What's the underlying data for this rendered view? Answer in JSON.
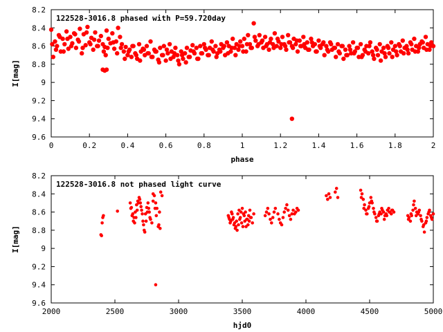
{
  "chart_data": [
    {
      "type": "scatter",
      "title": "122528-3016.8 phased with P=59.720day",
      "xlabel": "phase",
      "ylabel": "I[mag]",
      "xlim": [
        0,
        2
      ],
      "ylim": [
        8.2,
        9.6
      ],
      "y_inverted": true,
      "xticks": [
        "0",
        "0.2",
        "0.4",
        "0.6",
        "0.8",
        "1",
        "1.2",
        "1.4",
        "1.6",
        "1.8",
        "2"
      ],
      "yticks": [
        "8.2",
        "8.4",
        "8.6",
        "8.8",
        "9",
        "9.2",
        "9.4",
        "9.6"
      ],
      "grid": false,
      "marker_color": "#ff0000",
      "marker": "filled-circle",
      "series": [
        {
          "x": [
            0.0,
            0.01,
            0.02,
            0.03,
            0.04,
            0.05,
            0.06,
            0.07,
            0.08,
            0.09,
            0.1,
            0.11,
            0.12,
            0.13,
            0.14,
            0.15,
            0.16,
            0.17,
            0.18,
            0.19,
            0.2,
            0.21,
            0.22,
            0.23,
            0.24,
            0.25,
            0.26,
            0.27,
            0.28,
            0.29,
            0.3,
            0.31,
            0.32,
            0.33,
            0.34,
            0.35,
            0.36,
            0.37,
            0.38,
            0.39,
            0.4,
            0.41,
            0.42,
            0.43,
            0.44,
            0.45,
            0.46,
            0.47,
            0.48,
            0.49,
            0.5,
            0.51,
            0.52,
            0.53,
            0.54,
            0.55,
            0.56,
            0.57,
            0.58,
            0.59,
            0.6,
            0.61,
            0.62,
            0.63,
            0.64,
            0.65,
            0.66,
            0.67,
            0.68,
            0.69,
            0.7,
            0.71,
            0.72,
            0.73,
            0.74,
            0.75,
            0.76,
            0.77,
            0.78,
            0.79,
            0.8,
            0.81,
            0.82,
            0.83,
            0.84,
            0.85,
            0.86,
            0.87,
            0.88,
            0.89,
            0.9,
            0.91,
            0.92,
            0.93,
            0.94,
            0.95,
            0.96,
            0.97,
            0.98,
            0.99,
            1.0,
            1.01,
            1.02,
            1.03,
            1.04,
            1.05,
            1.06,
            1.07,
            1.08,
            1.09,
            1.1,
            1.11,
            1.12,
            1.13,
            1.14,
            1.15,
            1.16,
            1.17,
            1.18,
            1.19,
            1.2,
            1.21,
            1.22,
            1.23,
            1.24,
            1.25,
            1.26,
            1.27,
            1.28,
            1.29,
            1.3,
            1.31,
            1.32,
            1.33,
            1.34,
            1.35,
            1.36,
            1.37,
            1.38,
            1.39,
            1.4,
            1.41,
            1.42,
            1.43,
            1.44,
            1.45,
            1.46,
            1.47,
            1.48,
            1.49,
            1.5,
            1.51,
            1.52,
            1.53,
            1.54,
            1.55,
            1.56,
            1.57,
            1.58,
            1.59,
            1.6,
            1.61,
            1.62,
            1.63,
            1.64,
            1.65,
            1.66,
            1.67,
            1.68,
            1.69,
            1.7,
            1.71,
            1.72,
            1.73,
            1.74,
            1.75,
            1.76,
            1.77,
            1.78,
            1.79,
            1.8,
            1.81,
            1.82,
            1.83,
            1.84,
            1.85,
            1.86,
            1.87,
            1.88,
            1.89,
            1.9,
            1.91,
            1.92,
            1.93,
            1.94,
            1.95,
            1.96,
            1.97,
            1.98,
            1.99,
            2.0,
            0.005,
            0.025,
            0.045,
            0.065,
            0.085,
            0.105,
            0.125,
            0.145,
            0.165,
            0.185,
            0.205,
            0.225,
            0.245,
            0.275,
            0.285,
            0.295,
            0.325,
            0.345,
            0.365,
            0.385,
            0.405,
            0.425,
            0.445,
            0.465,
            0.485,
            0.505,
            0.525,
            0.545,
            0.565,
            0.585,
            0.605,
            0.625,
            0.645,
            0.665,
            0.685,
            0.705,
            0.725,
            0.745,
            0.765,
            0.785,
            0.805,
            0.825,
            0.845,
            0.865,
            0.885,
            0.905,
            0.925,
            0.945,
            0.965,
            0.985,
            1.005,
            1.025,
            1.045,
            1.065,
            1.085,
            1.105,
            1.125,
            1.145,
            1.165,
            1.185,
            1.205,
            1.225,
            1.245,
            1.265,
            1.285,
            1.305,
            1.325,
            1.345,
            1.365,
            1.385,
            1.405,
            1.425,
            1.445,
            1.465,
            1.485,
            1.505,
            1.525,
            1.545,
            1.565,
            1.585,
            1.605,
            1.625,
            1.645,
            1.665,
            1.685,
            1.705,
            1.725,
            1.745,
            1.765,
            1.785,
            1.805,
            1.825,
            1.845,
            1.865,
            1.885,
            1.905,
            1.925,
            1.945,
            1.965,
            1.985,
            0.27,
            0.28,
            0.29,
            1.26
          ],
          "y": [
            8.42,
            8.72,
            8.55,
            8.6,
            8.48,
            8.66,
            8.52,
            8.58,
            8.44,
            8.63,
            8.5,
            8.57,
            8.46,
            8.62,
            8.53,
            8.41,
            8.68,
            8.47,
            8.59,
            8.39,
            8.56,
            8.51,
            8.64,
            8.45,
            8.6,
            8.54,
            8.49,
            8.58,
            8.61,
            8.43,
            8.52,
            8.57,
            8.46,
            8.63,
            8.55,
            8.4,
            8.5,
            8.58,
            8.66,
            8.61,
            8.7,
            8.64,
            8.72,
            8.6,
            8.68,
            8.74,
            8.58,
            8.66,
            8.63,
            8.7,
            8.6,
            8.68,
            8.55,
            8.72,
            8.64,
            8.66,
            8.75,
            8.62,
            8.7,
            8.6,
            8.76,
            8.68,
            8.58,
            8.66,
            8.72,
            8.62,
            8.7,
            8.8,
            8.66,
            8.74,
            8.68,
            8.62,
            8.72,
            8.65,
            8.59,
            8.68,
            8.62,
            8.74,
            8.6,
            8.68,
            8.58,
            8.64,
            8.7,
            8.62,
            8.55,
            8.66,
            8.6,
            8.68,
            8.64,
            8.58,
            8.62,
            8.7,
            8.56,
            8.6,
            8.66,
            8.52,
            8.62,
            8.58,
            8.64,
            8.55,
            8.6,
            8.52,
            8.66,
            8.48,
            8.58,
            8.62,
            8.35,
            8.54,
            8.6,
            8.48,
            8.56,
            8.62,
            8.5,
            8.58,
            8.64,
            8.52,
            8.58,
            8.46,
            8.6,
            8.55,
            8.62,
            8.5,
            8.58,
            8.64,
            8.48,
            8.56,
            8.6,
            8.52,
            8.58,
            8.66,
            8.54,
            8.6,
            8.5,
            8.62,
            8.56,
            8.64,
            8.52,
            8.6,
            8.58,
            8.66,
            8.54,
            8.62,
            8.58,
            8.7,
            8.6,
            8.66,
            8.56,
            8.64,
            8.62,
            8.72,
            8.58,
            8.68,
            8.6,
            8.74,
            8.64,
            8.7,
            8.6,
            8.68,
            8.56,
            8.66,
            8.62,
            8.72,
            8.58,
            8.7,
            8.64,
            8.6,
            8.68,
            8.56,
            8.66,
            8.74,
            8.62,
            8.7,
            8.58,
            8.66,
            8.62,
            8.72,
            8.6,
            8.68,
            8.56,
            8.64,
            8.6,
            8.7,
            8.58,
            8.66,
            8.54,
            8.62,
            8.6,
            8.68,
            8.56,
            8.64,
            8.52,
            8.6,
            8.66,
            8.58,
            8.55,
            8.62,
            8.5,
            8.58,
            8.64,
            8.56,
            8.6,
            8.58,
            8.64,
            8.5,
            8.66,
            8.52,
            8.6,
            8.47,
            8.55,
            8.62,
            8.45,
            8.58,
            8.53,
            8.6,
            8.66,
            8.7,
            8.62,
            8.56,
            8.68,
            8.62,
            8.74,
            8.66,
            8.6,
            8.7,
            8.76,
            8.64,
            8.68,
            8.72,
            8.66,
            8.78,
            8.7,
            8.64,
            8.74,
            8.68,
            8.76,
            8.7,
            8.78,
            8.72,
            8.66,
            8.74,
            8.68,
            8.62,
            8.7,
            8.64,
            8.72,
            8.66,
            8.6,
            8.68,
            8.62,
            8.7,
            8.6,
            8.66,
            8.58,
            8.62,
            8.5,
            8.58,
            8.54,
            8.6,
            8.56,
            8.62,
            8.52,
            8.58,
            8.6,
            8.56,
            8.62,
            8.54,
            8.6,
            8.58,
            8.64,
            8.56,
            8.66,
            8.6,
            8.56,
            8.64,
            8.58,
            8.62,
            8.66,
            8.6,
            8.7,
            8.64,
            8.68,
            8.62,
            8.72,
            8.66,
            8.6,
            8.7,
            8.64,
            8.76,
            8.68,
            8.62,
            8.72,
            8.66,
            8.6,
            8.68,
            8.64,
            8.58,
            8.66,
            8.62,
            8.56,
            8.64,
            8.6,
            8.86,
            8.87,
            8.86,
            9.4
          ]
        }
      ]
    },
    {
      "type": "scatter",
      "title": "122528-3016.8 not phased light curve",
      "xlabel": "hjd0",
      "ylabel": "I[mag]",
      "xlim": [
        2000,
        5000
      ],
      "ylim": [
        8.2,
        9.6
      ],
      "y_inverted": true,
      "xticks": [
        "2000",
        "2500",
        "3000",
        "3500",
        "4000",
        "4500",
        "5000"
      ],
      "yticks": [
        "8.2",
        "8.4",
        "8.6",
        "8.8",
        "9",
        "9.2",
        "9.4",
        "9.6"
      ],
      "grid": false,
      "marker_color": "#ff0000",
      "marker": "filled-circle",
      "series": [
        {
          "x": [
            2390,
            2395,
            2400,
            2405,
            2410,
            2520,
            2620,
            2630,
            2640,
            2650,
            2660,
            2670,
            2680,
            2690,
            2700,
            2710,
            2720,
            2730,
            2740,
            2750,
            2760,
            2770,
            2780,
            2790,
            2800,
            2810,
            2820,
            2830,
            2840,
            2850,
            2860,
            2870,
            2625,
            2635,
            2645,
            2655,
            2665,
            2675,
            2685,
            2695,
            2705,
            2715,
            2725,
            2735,
            2745,
            2755,
            2765,
            2775,
            2800,
            2815,
            2825,
            2845,
            2855,
            3390,
            3400,
            3410,
            3420,
            3430,
            3440,
            3450,
            3460,
            3470,
            3480,
            3490,
            3500,
            3510,
            3520,
            3530,
            3540,
            3550,
            3560,
            3570,
            3580,
            3590,
            3395,
            3405,
            3415,
            3425,
            3435,
            3445,
            3455,
            3465,
            3475,
            3485,
            3495,
            3505,
            3515,
            3525,
            3535,
            3545,
            3555,
            3565,
            3680,
            3690,
            3700,
            3710,
            3720,
            3730,
            3740,
            3750,
            3760,
            3780,
            3790,
            3800,
            3810,
            3820,
            3830,
            3840,
            3850,
            3860,
            3870,
            3880,
            3890,
            3900,
            3910,
            3920,
            3930,
            3940,
            4160,
            4170,
            4180,
            4190,
            4230,
            4240,
            4250,
            4430,
            4440,
            4450,
            4460,
            4470,
            4480,
            4490,
            4500,
            4510,
            4520,
            4530,
            4540,
            4550,
            4560,
            4570,
            4580,
            4590,
            4600,
            4610,
            4620,
            4630,
            4640,
            4650,
            4660,
            4670,
            4680,
            4690,
            4435,
            4455,
            4475,
            4495,
            4515,
            4535,
            4555,
            4575,
            4595,
            4615,
            4635,
            4655,
            4675,
            4800,
            4810,
            4820,
            4830,
            4840,
            4850,
            4860,
            4870,
            4880,
            4890,
            4900,
            4910,
            4920,
            4930,
            4940,
            4950,
            4960,
            4970,
            4980,
            4990,
            5000,
            4805,
            4825,
            4845,
            4865,
            4885,
            4905,
            4925,
            4945,
            4965,
            4985,
            2820
          ],
          "y": [
            8.85,
            8.86,
            8.72,
            8.66,
            8.64,
            8.59,
            8.5,
            8.55,
            8.62,
            8.66,
            8.6,
            8.52,
            8.48,
            8.44,
            8.5,
            8.58,
            8.7,
            8.8,
            8.62,
            8.55,
            8.5,
            8.6,
            8.68,
            8.72,
            8.4,
            8.42,
            8.5,
            8.56,
            8.76,
            8.6,
            8.38,
            8.42,
            8.56,
            8.64,
            8.7,
            8.72,
            8.66,
            8.58,
            8.5,
            8.46,
            8.54,
            8.62,
            8.74,
            8.82,
            8.7,
            8.6,
            8.56,
            8.66,
            8.48,
            8.56,
            8.64,
            8.74,
            8.78,
            8.64,
            8.68,
            8.7,
            8.62,
            8.66,
            8.72,
            8.76,
            8.8,
            8.74,
            8.68,
            8.6,
            8.56,
            8.62,
            8.7,
            8.76,
            8.68,
            8.64,
            8.58,
            8.66,
            8.72,
            8.62,
            8.66,
            8.72,
            8.6,
            8.68,
            8.74,
            8.78,
            8.7,
            8.62,
            8.58,
            8.66,
            8.72,
            8.76,
            8.64,
            8.6,
            8.68,
            8.74,
            8.7,
            8.66,
            8.64,
            8.6,
            8.56,
            8.62,
            8.68,
            8.72,
            8.66,
            8.6,
            8.56,
            8.62,
            8.68,
            8.72,
            8.74,
            8.66,
            8.6,
            8.56,
            8.52,
            8.58,
            8.64,
            8.68,
            8.62,
            8.58,
            8.62,
            8.6,
            8.56,
            8.58,
            8.42,
            8.46,
            8.4,
            8.44,
            8.38,
            8.34,
            8.44,
            8.36,
            8.4,
            8.46,
            8.52,
            8.58,
            8.62,
            8.56,
            8.5,
            8.44,
            8.5,
            8.56,
            8.62,
            8.66,
            8.7,
            8.64,
            8.6,
            8.62,
            8.58,
            8.6,
            8.64,
            8.62,
            8.58,
            8.56,
            8.6,
            8.62,
            8.58,
            8.6,
            8.44,
            8.56,
            8.62,
            8.54,
            8.48,
            8.6,
            8.7,
            8.62,
            8.56,
            8.68,
            8.64,
            8.6,
            8.58,
            8.64,
            8.66,
            8.7,
            8.64,
            8.58,
            8.48,
            8.56,
            8.6,
            8.62,
            8.58,
            8.64,
            8.7,
            8.76,
            8.82,
            8.72,
            8.66,
            8.62,
            8.58,
            8.64,
            8.68,
            8.62,
            8.68,
            8.62,
            8.52,
            8.64,
            8.6,
            8.68,
            8.74,
            8.7,
            8.6,
            8.66,
            9.4
          ]
        }
      ]
    }
  ]
}
